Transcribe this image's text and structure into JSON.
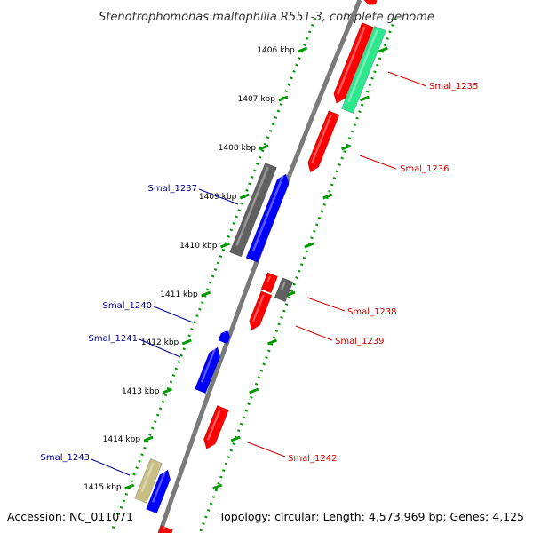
{
  "title": "Stenotrophomonas maltophilia R551-3, complete genome",
  "footer": {
    "accession": "Accession: NC_011071",
    "summary": "Topology: circular; Length: 4,573,969 bp; Genes: 4,125"
  },
  "ruler": [
    {
      "label": "1406 kbp"
    },
    {
      "label": "1407 kbp"
    },
    {
      "label": "1408 kbp"
    },
    {
      "label": "1409 kbp"
    },
    {
      "label": "1410 kbp"
    },
    {
      "label": "1411 kbp"
    },
    {
      "label": "1412 kbp"
    },
    {
      "label": "1413 kbp"
    },
    {
      "label": "1414 kbp"
    },
    {
      "label": "1415 kbp"
    }
  ],
  "gene_labels": [
    {
      "label": "Smal_1235",
      "strand": "forward"
    },
    {
      "label": "Smal_1236",
      "strand": "forward"
    },
    {
      "label": "Smal_1237",
      "strand": "reverse"
    },
    {
      "label": "Smal_1238",
      "strand": "forward"
    },
    {
      "label": "Smal_1239",
      "strand": "forward"
    },
    {
      "label": "Smal_1240",
      "strand": "reverse"
    },
    {
      "label": "Smal_1241",
      "strand": "reverse"
    },
    {
      "label": "Smal_1242",
      "strand": "forward"
    },
    {
      "label": "Smal_1243",
      "strand": "reverse"
    }
  ],
  "colors": {
    "forward_cds": "#ff0000",
    "reverse_cds": "#0000ff",
    "other_gene": "#606060",
    "rna": "#2ee68e",
    "pseudo": "#c8bf85",
    "backbone": "#7a7a7a",
    "ruler_dots": "#009900",
    "forward_label": "#cc0000",
    "reverse_label": "#00008b"
  }
}
